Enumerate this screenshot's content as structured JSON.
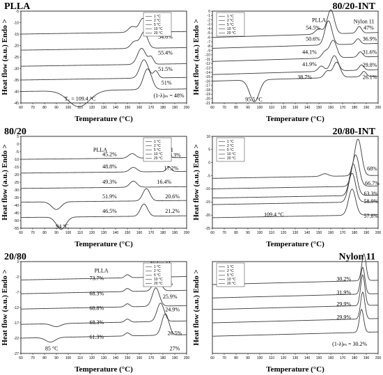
{
  "chart_data": [
    {
      "type": "line",
      "title": "PLLA",
      "xlabel": "Temperature (°C)",
      "ylabel": "Heat flow (a.u.) Endo >",
      "xlim": [
        60,
        200
      ],
      "x_ticks": [
        "60",
        "70",
        "80",
        "90",
        "100",
        "110",
        "120",
        "130",
        "140",
        "150",
        "160",
        "170",
        "180",
        "190",
        "200"
      ],
      "y_ticks": [
        "-5",
        "-10",
        "-15",
        "-20",
        "-25",
        "-30",
        "-35",
        "-40",
        "-45"
      ],
      "ylim": [
        -45,
        -5
      ],
      "legend": [
        "1 °C",
        "2 °C",
        "5 °C",
        "10 °C",
        "20 °C"
      ],
      "legend_position": "top-right",
      "series": [
        {
          "name": "1 °C",
          "baseline": -15,
          "peaks": [
            {
              "x": 154,
              "h": 2.5,
              "w": 3
            },
            {
              "x": 163,
              "h": 6,
              "w": 3
            }
          ]
        },
        {
          "name": "2 °C",
          "baseline": -22,
          "peaks": [
            {
              "x": 156,
              "h": 3,
              "w": 3
            },
            {
              "x": 164,
              "h": 7,
              "w": 3
            }
          ]
        },
        {
          "name": "5 °C",
          "baseline": -29,
          "peaks": [
            {
              "x": 162,
              "h": 7,
              "w": 3.5
            },
            {
              "x": 170,
              "h": 3,
              "w": 2
            }
          ]
        },
        {
          "name": "10 °C",
          "baseline": -35,
          "peaks": [
            {
              "x": 164,
              "h": 8,
              "w": 3.5
            },
            {
              "x": 174,
              "h": 3,
              "w": 2
            }
          ]
        },
        {
          "name": "20 °C",
          "baseline": -40,
          "peaks": [
            {
              "x": 109,
              "h": -7,
              "w": 9
            },
            {
              "x": 167,
              "h": 9,
              "w": 3.5
            }
          ]
        }
      ],
      "annotations": [
        {
          "text": "54.6%",
          "x": 182,
          "y": -17
        },
        {
          "text": "55.4%",
          "x": 182,
          "y": -24
        },
        {
          "text": "51.5%",
          "x": 182,
          "y": -31
        },
        {
          "text": "51%",
          "x": 183,
          "y": -37
        },
        {
          "text": "(1-λ)ₘ = 48%",
          "x": 185,
          "y": -42.5
        },
        {
          "text": "T꜀ = 109.4 °C",
          "x": 110,
          "y": -44
        }
      ]
    },
    {
      "type": "line",
      "title": "80/20-INT",
      "xlabel": "Temperature (°C)",
      "ylabel": "Heat flow (a.u.) Endo >",
      "xlim": [
        60,
        200
      ],
      "x_ticks": [
        "60",
        "70",
        "80",
        "90",
        "100",
        "110",
        "120",
        "130",
        "140",
        "150",
        "160",
        "170",
        "180",
        "190",
        "200"
      ],
      "y_ticks": [
        "0",
        "-1",
        "-2",
        "-3",
        "-4",
        "-5",
        "-6",
        "-7",
        "-8",
        "-9",
        "-10",
        "-11",
        "-12",
        "-13",
        "-14",
        "-15",
        "-16",
        "-17",
        "-18",
        "-19",
        "-20",
        "-21"
      ],
      "ylim": [
        -21,
        0
      ],
      "legend": [
        "1 °C",
        "2 °C",
        "5 °C",
        "10 °C",
        "20 °C"
      ],
      "legend_position": "top-left",
      "series": [
        {
          "name": "1 °C",
          "baseline": -6,
          "peaks": [
            {
              "x": 150,
              "h": 1.2,
              "w": 3
            },
            {
              "x": 160,
              "h": 5.5,
              "w": 3
            },
            {
              "x": 184,
              "h": 1.5,
              "w": 2
            }
          ]
        },
        {
          "name": "2 °C",
          "baseline": -8.5,
          "peaks": [
            {
              "x": 158,
              "h": 5.5,
              "w": 3
            },
            {
              "x": 183,
              "h": 1.2,
              "w": 2
            }
          ]
        },
        {
          "name": "5 °C",
          "baseline": -11.5,
          "peaks": [
            {
              "x": 155,
              "h": 1.4,
              "w": 2.5
            },
            {
              "x": 162,
              "h": 4,
              "w": 3
            },
            {
              "x": 185,
              "h": 1.2,
              "w": 2
            }
          ]
        },
        {
          "name": "10 °C",
          "baseline": -14.5,
          "peaks": [
            {
              "x": 152,
              "h": 1.2,
              "w": 2.5
            },
            {
              "x": 163,
              "h": 3.5,
              "w": 3
            },
            {
              "x": 186,
              "h": 1.2,
              "w": 2
            }
          ]
        },
        {
          "name": "20 °C",
          "baseline": -16,
          "peaks": [
            {
              "x": 95.5,
              "h": -5,
              "w": 4
            },
            {
              "x": 157,
              "h": 1.5,
              "w": 2.5
            },
            {
              "x": 165,
              "h": 3.5,
              "w": 3
            },
            {
              "x": 188,
              "h": 1.2,
              "w": 2
            }
          ]
        }
      ],
      "annotations": [
        {
          "text": "PLLA",
          "x": 150,
          "y": -2.5
        },
        {
          "text": "Nylon 11",
          "x": 188,
          "y": -2.8
        },
        {
          "text": "54.5%",
          "x": 145,
          "y": -4.2
        },
        {
          "text": "50.6%",
          "x": 145,
          "y": -6.8
        },
        {
          "text": "44.1%",
          "x": 142,
          "y": -9.8
        },
        {
          "text": "41.9%",
          "x": 142,
          "y": -12.6
        },
        {
          "text": "38.7%",
          "x": 138,
          "y": -15.5
        },
        {
          "text": "47%",
          "x": 192,
          "y": -4.2
        },
        {
          "text": "36.9%",
          "x": 193,
          "y": -6.8
        },
        {
          "text": "31.6%",
          "x": 193,
          "y": -9.8
        },
        {
          "text": "29.8%",
          "x": 193,
          "y": -12.7
        },
        {
          "text": "26.1%",
          "x": 193,
          "y": -15.5
        },
        {
          "text": "95.5 °C",
          "x": 95,
          "y": -20.6
        }
      ]
    },
    {
      "type": "line",
      "title": "80/20",
      "xlabel": "Temperature (°C)",
      "ylabel": "Heat flow (a.u.) Endo >",
      "xlim": [
        60,
        200
      ],
      "x_ticks": [
        "60",
        "70",
        "80",
        "90",
        "100",
        "110",
        "120",
        "130",
        "140",
        "150",
        "160",
        "170",
        "180",
        "190",
        "200"
      ],
      "y_ticks": [
        "5",
        "0",
        "-5",
        "-10",
        "-15",
        "-20",
        "-25",
        "-30",
        "-35",
        "-40",
        "-45",
        "-50",
        "-55"
      ],
      "ylim": [
        -55,
        5
      ],
      "legend": [
        "1 °C",
        "2 °C",
        "5 °C",
        "10 °C",
        "20 °C"
      ],
      "legend_position": "top-right",
      "series": [
        {
          "name": "1 °C",
          "baseline": -10,
          "peaks": [
            {
              "x": 154,
              "h": 3,
              "w": 3
            },
            {
              "x": 183,
              "h": 3,
              "w": 2
            }
          ]
        },
        {
          "name": "2 °C",
          "baseline": -19,
          "peaks": [
            {
              "x": 155,
              "h": 3,
              "w": 3
            },
            {
              "x": 185,
              "h": 3,
              "w": 2
            }
          ]
        },
        {
          "name": "5 °C",
          "baseline": -29,
          "peaks": [
            {
              "x": 155,
              "h": 4,
              "w": 3
            }
          ]
        },
        {
          "name": "10 °C",
          "baseline": -38,
          "peaks": [
            {
              "x": 90,
              "h": -5,
              "w": 4
            },
            {
              "x": 166,
              "h": 8,
              "w": 3
            }
          ]
        },
        {
          "name": "20 °C",
          "baseline": -48,
          "peaks": [
            {
              "x": 94,
              "h": -8,
              "w": 4
            },
            {
              "x": 164,
              "h": 8,
              "w": 3
            }
          ]
        }
      ],
      "annotations": [
        {
          "text": "PLLA",
          "x": 127,
          "y": -5
        },
        {
          "text": "Nylon 11",
          "x": 180,
          "y": -5
        },
        {
          "text": "45.2%",
          "x": 135,
          "y": -8
        },
        {
          "text": "48.8%",
          "x": 135,
          "y": -16
        },
        {
          "text": "49.3%",
          "x": 135,
          "y": -26
        },
        {
          "text": "51.9%",
          "x": 135,
          "y": -35.5
        },
        {
          "text": "46.5%",
          "x": 135,
          "y": -45
        },
        {
          "text": "18.3%",
          "x": 189,
          "y": -8.5
        },
        {
          "text": "17.2%",
          "x": 187,
          "y": -17
        },
        {
          "text": "16.4%",
          "x": 181,
          "y": -26
        },
        {
          "text": "20.6%",
          "x": 188,
          "y": -35.5
        },
        {
          "text": "21.2%",
          "x": 188,
          "y": -45
        },
        {
          "text": "94 °C",
          "x": 95,
          "y": -55
        }
      ]
    },
    {
      "type": "line",
      "title": "20/80-INT",
      "xlabel": "Temperature (°C)",
      "ylabel": "Heat flow (a.u.) Endo >",
      "xlim": [
        60,
        200
      ],
      "x_ticks": [
        "60",
        "70",
        "80",
        "90",
        "100",
        "110",
        "120",
        "130",
        "140",
        "150",
        "160",
        "170",
        "180",
        "190",
        "200"
      ],
      "y_ticks": [
        "10",
        "5",
        "0",
        "-5",
        "-10",
        "-15",
        "-20",
        "-25"
      ],
      "ylim": [
        -25,
        10
      ],
      "legend": [
        "1 °C",
        "2 °C",
        "5 °C",
        "10 °C",
        "20 °C"
      ],
      "legend_position": "top-left",
      "series": [
        {
          "name": "1 °C",
          "baseline": -6,
          "peaks": [
            {
              "x": 155,
              "h": 1,
              "w": 3
            },
            {
              "x": 183,
              "h": 14,
              "w": 3
            }
          ]
        },
        {
          "name": "2 °C",
          "baseline": -10,
          "peaks": [
            {
              "x": 181,
              "h": 12,
              "w": 3
            }
          ]
        },
        {
          "name": "5 °C",
          "baseline": -13.5,
          "peaks": [
            {
              "x": 179,
              "h": 12,
              "w": 3
            }
          ]
        },
        {
          "name": "10 °C",
          "baseline": -16,
          "peaks": [
            {
              "x": 178,
              "h": 11,
              "w": 3
            }
          ]
        },
        {
          "name": "20 °C",
          "baseline": -21,
          "peaks": [
            {
              "x": 178,
              "h": 10,
              "w": 3
            }
          ]
        }
      ],
      "annotations": [
        {
          "text": "68%",
          "x": 195,
          "y": -3
        },
        {
          "text": "66.7%",
          "x": 195,
          "y": -8.5
        },
        {
          "text": "63.3%",
          "x": 194,
          "y": -12.5
        },
        {
          "text": "58.9%",
          "x": 194,
          "y": -15.5
        },
        {
          "text": "57.8%",
          "x": 194,
          "y": -21
        },
        {
          "text": "109.4 °C",
          "x": 112,
          "y": -20.5
        }
      ]
    },
    {
      "type": "line",
      "title": "20/80",
      "xlabel": "Temperature (°C)",
      "ylabel": "Heat flow (a.u.) Endo >",
      "xlim": [
        60,
        200
      ],
      "x_ticks": [
        "60",
        "70",
        "80",
        "90",
        "100",
        "110",
        "120",
        "130",
        "140",
        "150",
        "160",
        "170",
        "180",
        "190",
        "200"
      ],
      "y_ticks": [
        "3",
        "-2",
        "-7",
        "-12",
        "-17",
        "-22",
        "-27"
      ],
      "ylim": [
        -27,
        3
      ],
      "legend": [
        "1 °C",
        "2 °C",
        "5 °C",
        "10 °C",
        "20 °C"
      ],
      "legend_position": "top-right",
      "series": [
        {
          "name": "1 °C",
          "baseline": -3,
          "peaks": [
            {
              "x": 150,
              "h": 1,
              "w": 2
            },
            {
              "x": 176,
              "h": 4,
              "w": 3
            }
          ]
        },
        {
          "name": "2 °C",
          "baseline": -7.5,
          "peaks": [
            {
              "x": 150,
              "h": 1,
              "w": 2
            },
            {
              "x": 175,
              "h": 5,
              "w": 3
            }
          ]
        },
        {
          "name": "5 °C",
          "baseline": -12.5,
          "peaks": [
            {
              "x": 150,
              "h": 1,
              "w": 2
            },
            {
              "x": 174,
              "h": 6,
              "w": 3
            }
          ]
        },
        {
          "name": "10 °C",
          "baseline": -17.5,
          "peaks": [
            {
              "x": 90,
              "h": -1,
              "w": 4
            },
            {
              "x": 150,
              "h": 1,
              "w": 2
            },
            {
              "x": 178,
              "h": 6,
              "w": 3
            }
          ]
        },
        {
          "name": "20 °C",
          "baseline": -22,
          "peaks": [
            {
              "x": 85,
              "h": -1.5,
              "w": 4
            },
            {
              "x": 150,
              "h": 1,
              "w": 2
            },
            {
              "x": 182,
              "h": 7,
              "w": 3
            }
          ]
        }
      ],
      "annotations": [
        {
          "text": "PLLA",
          "x": 128,
          "y": -0.5
        },
        {
          "text": "Nylon 11",
          "x": 178,
          "y": 1.8
        },
        {
          "text": "73.7%",
          "x": 124,
          "y": -3
        },
        {
          "text": "68.3%",
          "x": 124,
          "y": -8
        },
        {
          "text": "68.8%",
          "x": 124,
          "y": -12.8
        },
        {
          "text": "68.3%",
          "x": 124,
          "y": -17.5
        },
        {
          "text": "61.3%",
          "x": 124,
          "y": -22.2
        },
        {
          "text": "29%",
          "x": 184,
          "y": -4.7
        },
        {
          "text": "25.9%",
          "x": 186,
          "y": -9
        },
        {
          "text": "24.9%",
          "x": 188,
          "y": -13.2
        },
        {
          "text": "26.5%",
          "x": 190,
          "y": -21
        },
        {
          "text": "27%",
          "x": 190,
          "y": -26
        },
        {
          "text": "85 °C",
          "x": 86,
          "y": -26
        }
      ]
    },
    {
      "type": "line",
      "title": "Nylon 11",
      "xlabel": "Temperature (°C)",
      "ylabel": "Heat flow (a.u.) Endo >",
      "xlim": [
        60,
        200
      ],
      "x_ticks": [
        "60",
        "70",
        "80",
        "90",
        "100",
        "110",
        "120",
        "130",
        "140",
        "150",
        "160",
        "170",
        "180",
        "190",
        "200"
      ],
      "y_ticks": [],
      "legend": [
        "1 °C",
        "2 °C",
        "5 °C",
        "10 °C",
        "20 °C"
      ],
      "legend_position": "top-left",
      "series": [
        {
          "name": "1 °C",
          "baseline": -6,
          "peaks": [
            {
              "x": 188,
              "h": 7,
              "w": 1.8
            }
          ]
        },
        {
          "name": "2 °C",
          "baseline": -9.5,
          "peaks": [
            {
              "x": 187,
              "h": 7,
              "w": 1.8
            }
          ]
        },
        {
          "name": "5 °C",
          "baseline": -12.5,
          "peaks": [
            {
              "x": 187,
              "h": 8,
              "w": 1.8
            }
          ]
        },
        {
          "name": "10 °C",
          "baseline": -16,
          "peaks": [
            {
              "x": 187,
              "h": 7,
              "w": 1.8
            }
          ]
        },
        {
          "name": "20 °C",
          "baseline": -19.5,
          "peaks": [
            {
              "x": 186,
              "h": 6,
              "w": 1.8
            }
          ]
        }
      ],
      "ylim": [
        -24,
        0
      ],
      "annotations": [
        {
          "text": "30.2%",
          "x": 171,
          "y": -5
        },
        {
          "text": "31.9%",
          "x": 171,
          "y": -8.5
        },
        {
          "text": "29.9%",
          "x": 171,
          "y": -11.5
        },
        {
          "text": "29.9%",
          "x": 171,
          "y": -15
        },
        {
          "text": "(1-λ)ₘ = 30.2%",
          "x": 176,
          "y": -22
        }
      ]
    }
  ]
}
